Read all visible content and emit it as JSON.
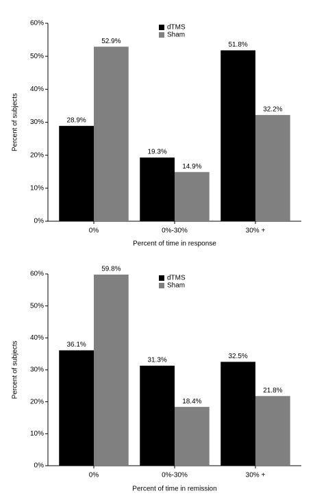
{
  "chart_data": [
    {
      "type": "bar",
      "xlabel": "Percent of time in response",
      "ylabel": "Percent of subjects",
      "categories": [
        "0%",
        "0%-30%",
        "30% +"
      ],
      "series": [
        {
          "name": "dTMS",
          "color": "#000000",
          "values": [
            28.9,
            19.3,
            51.8
          ],
          "value_labels": [
            "28.9%",
            "19.3%",
            "51.8%"
          ]
        },
        {
          "name": "Sham",
          "color": "#808080",
          "values": [
            52.9,
            14.9,
            32.2
          ],
          "value_labels": [
            "52.9%",
            "14.9%",
            "32.2%"
          ]
        }
      ],
      "ylim": [
        0,
        60
      ],
      "yticks": [
        {
          "value": 0,
          "label": "0%"
        },
        {
          "value": 10,
          "label": "10%"
        },
        {
          "value": 20,
          "label": "20%"
        },
        {
          "value": 30,
          "label": "30%"
        },
        {
          "value": 40,
          "label": "40%"
        },
        {
          "value": 50,
          "label": "50%"
        },
        {
          "value": 60,
          "label": "60%"
        }
      ],
      "legend": "top"
    },
    {
      "type": "bar",
      "xlabel": "Percent of time in remission",
      "ylabel": "Percent of subjects",
      "categories": [
        "0%",
        "0%-30%",
        "30% +"
      ],
      "series": [
        {
          "name": "dTMS",
          "color": "#000000",
          "values": [
            36.1,
            31.3,
            32.5
          ],
          "value_labels": [
            "36.1%",
            "31.3%",
            "32.5%"
          ]
        },
        {
          "name": "Sham",
          "color": "#808080",
          "values": [
            59.8,
            18.4,
            21.8
          ],
          "value_labels": [
            "59.8%",
            "18.4%",
            "21.8%"
          ]
        }
      ],
      "ylim": [
        0,
        60
      ],
      "yticks": [
        {
          "value": 0,
          "label": "0%"
        },
        {
          "value": 10,
          "label": "10%"
        },
        {
          "value": 20,
          "label": "20%"
        },
        {
          "value": 30,
          "label": "30%"
        },
        {
          "value": 40,
          "label": "40%"
        },
        {
          "value": 50,
          "label": "50%"
        },
        {
          "value": 60,
          "label": "60%"
        }
      ],
      "legend": "top"
    }
  ]
}
